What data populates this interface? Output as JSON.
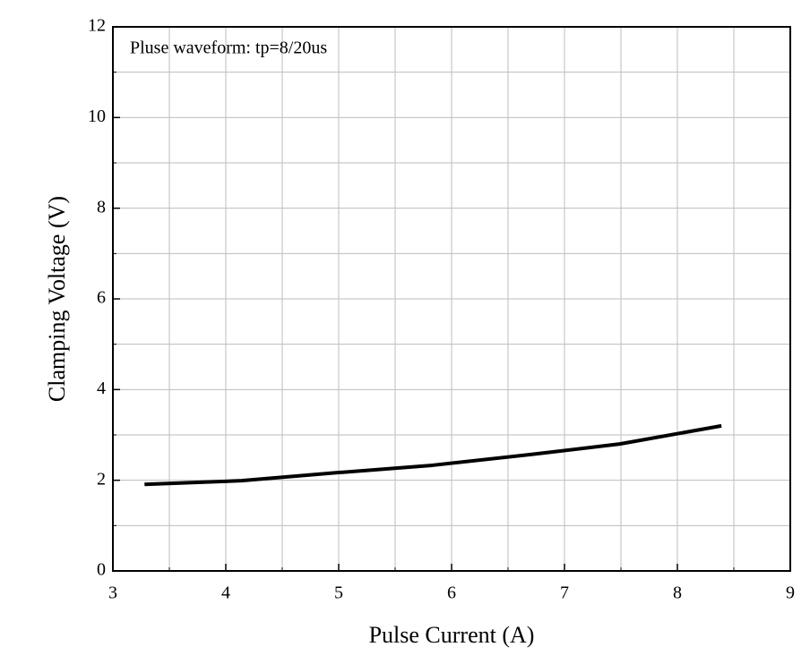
{
  "chart_data": {
    "type": "line",
    "annotation": "Pluse waveform: tp=8/20us",
    "x_label": "Pulse Current (A)",
    "y_label": "Clamping Voltage (V)",
    "series": [
      {
        "name": "Clamping Voltage",
        "color": "#000000",
        "x": [
          3.28,
          4.14,
          5.0,
          5.83,
          6.71,
          7.49,
          8.39
        ],
        "values": [
          1.91,
          1.99,
          2.17,
          2.33,
          2.57,
          2.8,
          3.2
        ]
      }
    ],
    "xlim": [
      3,
      9
    ],
    "xticks": [
      3,
      4,
      5,
      6,
      7,
      8,
      9
    ],
    "ylim": [
      0,
      12
    ],
    "yticks": [
      0,
      2,
      4,
      6,
      8,
      10,
      12
    ],
    "grid": true,
    "xgrid_step": 0.5,
    "ygrid_step": 1
  }
}
